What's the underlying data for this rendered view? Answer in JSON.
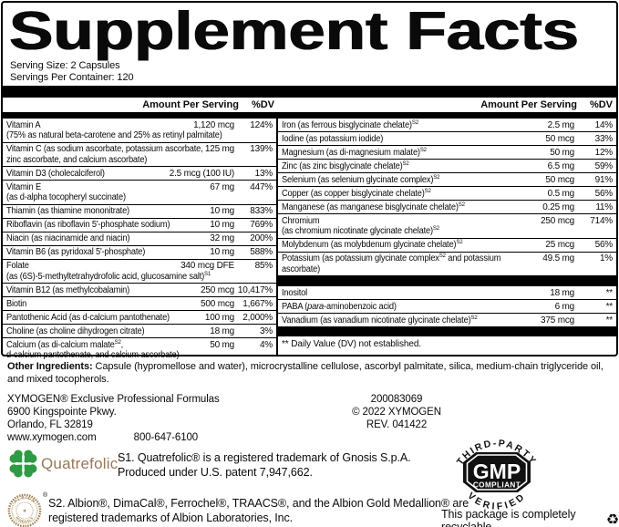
{
  "label": {
    "title": "Supplement Facts",
    "serving_size": "Serving Size: 2 Capsules",
    "servings_per_container": "Servings Per Container: 120",
    "column_header": {
      "amount": "Amount Per Serving",
      "dv": "%DV"
    },
    "left_rows": [
      {
        "name": "Vitamin A",
        "cont": "(75% as natural beta-carotene and 25% as retinyl palmitate)",
        "amount": "1,120 mcg",
        "dv": "124%"
      },
      {
        "name": "Vitamin C (as sodium ascorbate, potassium ascorbate,",
        "cont": "zinc ascorbate, and calcium ascorbate)",
        "amount": "125 mg",
        "dv": "139%"
      },
      {
        "name": "Vitamin D3 (cholecalciferol)",
        "amount": "2.5 mcg (100 IU)",
        "dv": "13%"
      },
      {
        "name": "Vitamin E",
        "cont": "(as d-alpha tocopheryl succinate)",
        "amount": "67 mg",
        "dv": "447%"
      },
      {
        "name": "Thiamin (as thiamine mononitrate)",
        "amount": "10 mg",
        "dv": "833%"
      },
      {
        "name": "Riboflavin (as riboflavin 5'-phosphate sodium)",
        "amount": "10 mg",
        "dv": "769%"
      },
      {
        "name": "Niacin (as niacinamide and niacin)",
        "amount": "32 mg",
        "dv": "200%"
      },
      {
        "name": "Vitamin B6 (as pyridoxal 5'-phosphate)",
        "amount": "10 mg",
        "dv": "588%"
      },
      {
        "name": "Folate",
        "cont": "(as (6S)-5-methyltetrahydrofolic acid, glucosamine salt)^{S1}",
        "amount": "340 mcg DFE",
        "dv": "85%"
      },
      {
        "name": "Vitamin B12 (as methylcobalamin)",
        "amount": "250 mcg",
        "dv": "10,417%"
      },
      {
        "name": "Biotin",
        "amount": "500 mcg",
        "dv": "1,667%"
      },
      {
        "name": "Pantothenic Acid (as d-calcium pantothenate)",
        "amount": "100 mg",
        "dv": "2,000%"
      },
      {
        "name": "Choline (as choline dihydrogen citrate)",
        "amount": "18 mg",
        "dv": "3%"
      },
      {
        "name": "Calcium (as di-calcium malate^{S2},",
        "cont": "d-calcium pantothenate, and calcium ascorbate)",
        "amount": "50 mg",
        "dv": "4%"
      }
    ],
    "right_rows": [
      {
        "name": "Iron (as ferrous bisglycinate chelate)^{S2}",
        "amount": "2.5 mg",
        "dv": "14%"
      },
      {
        "name": "Iodine (as potassium iodide)",
        "amount": "50 mcg",
        "dv": "33%"
      },
      {
        "name": "Magnesium (as di-magnesium malate)^{S2}",
        "amount": "50 mg",
        "dv": "12%"
      },
      {
        "name": "Zinc (as zinc bisglycinate chelate)^{S2}",
        "amount": "6.5 mg",
        "dv": "59%"
      },
      {
        "name": "Selenium (as selenium glycinate complex)^{S2}",
        "amount": "50 mcg",
        "dv": "91%"
      },
      {
        "name": "Copper (as copper bisglycinate chelate)^{S2}",
        "amount": "0.5 mg",
        "dv": "56%"
      },
      {
        "name": "Manganese (as manganese bisglycinate chelate)^{S2}",
        "amount": "0.25 mg",
        "dv": "11%"
      },
      {
        "name": "Chromium",
        "cont": "(as chromium nicotinate glycinate chelate)^{S2}",
        "amount": "250 mcg",
        "dv": "714%"
      },
      {
        "name": "Molybdenum (as molybdenum glycinate chelate)^{S2}",
        "amount": "25 mcg",
        "dv": "56%"
      },
      {
        "name": "Potassium (as potassium glycinate complex^{S2} and potassium",
        "cont": "ascorbate)",
        "amount": "49.5 mg",
        "dv": "1%"
      },
      {
        "type": "sep"
      },
      {
        "name": "Inositol",
        "amount": "18 mg",
        "dv": "**"
      },
      {
        "name": "PABA (~{para}-aminobenzoic acid)",
        "amount": "6 mg",
        "dv": "**"
      },
      {
        "name": "Vanadium (as vanadium nicotinate glycinate chelate)^{S2}",
        "amount": "375 mcg",
        "dv": "**"
      },
      {
        "type": "sep"
      },
      {
        "type": "note",
        "text": "** Daily Value (DV) not established."
      }
    ]
  },
  "footer": {
    "other_ingredients_label": "Other Ingredients:",
    "other_ingredients_text": " Capsule (hypromellose and water), microcrystalline cellulose, ascorbyl palmitate, silica, medium-chain triglyceride oil, and mixed tocopherols.",
    "company": {
      "line1": "XYMOGEN® Exclusive Professional Formulas",
      "line2": "6900 Kingspointe Pkwy.",
      "line3": "Orlando, FL 32819",
      "website": "www.xymogen.com",
      "phone": "800-647-6100"
    },
    "codes": {
      "item_number": "200083069",
      "copyright": "© 2022 XYMOGEN",
      "revision": "REV. 041422"
    },
    "quatrefolic": {
      "wordmark": "Quatrefolic",
      "mark": "*"
    },
    "s1_line1": "S1. Quatrefolic® is a registered trademark of Gnosis S.p.A.",
    "s1_line2": "Produced under U.S. patent 7,947,662.",
    "medallion": {
      "top": "ALBION",
      "bottom": "MINERALS",
      "reg": "®"
    },
    "s2_line1": "S2. Albion®, DimaCal®, Ferrochel®, TRAACS®, and the Albion Gold Medallion® are",
    "s2_line2": "registered trademarks of Albion Laboratories, Inc.",
    "gmp": {
      "top": "THIRD-PARTY",
      "main": "GMP",
      "sub": "COMPLIANT",
      "bottom": "VERIFIED"
    },
    "recyclable": "This package is completely recyclable"
  },
  "colors": {
    "clover_green": "#2f9a44",
    "quatrefolic_tan": "#97785a",
    "medallion_gold": "#a0824f",
    "ink": "#0a0a0a"
  }
}
